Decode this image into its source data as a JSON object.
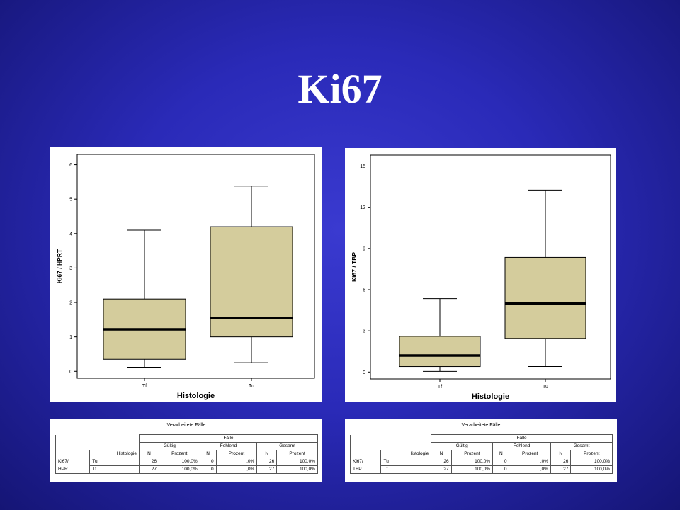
{
  "slide": {
    "title": "Ki67"
  },
  "chart_data": [
    {
      "type": "box",
      "xlabel": "Histologie",
      "ylabel": "Ki67 / HPRT",
      "categories": [
        "Tf",
        "Tu"
      ],
      "yticks": [
        "0",
        "1",
        "2",
        "3",
        "4",
        "5",
        "6"
      ],
      "ylim": [
        -0.2,
        6.3
      ],
      "boxes": [
        {
          "category": "Tf",
          "min": 0.12,
          "q1": 0.35,
          "median": 1.22,
          "q3": 2.1,
          "max": 4.1
        },
        {
          "category": "Tu",
          "min": 0.25,
          "q1": 1.0,
          "median": 1.55,
          "q3": 4.2,
          "max": 5.38
        }
      ],
      "box_color": "#d4cc9c"
    },
    {
      "type": "box",
      "xlabel": "Histologie",
      "ylabel": "Ki67 / TBP",
      "categories": [
        "Tf",
        "Tu"
      ],
      "yticks": [
        "0",
        "3",
        "6",
        "9",
        "12",
        "15"
      ],
      "ylim": [
        -0.5,
        15.8
      ],
      "boxes": [
        {
          "category": "Tf",
          "min": 0.05,
          "q1": 0.4,
          "median": 1.2,
          "q3": 2.6,
          "max": 5.35
        },
        {
          "category": "Tu",
          "min": 0.4,
          "q1": 2.45,
          "median": 5.0,
          "q3": 8.35,
          "max": 13.25
        }
      ],
      "box_color": "#d4cc9c"
    }
  ],
  "tables": [
    {
      "caption": "Verarbeitete Fälle",
      "group_header": "Fälle",
      "col_groups": [
        "Gültig",
        "Fehlend",
        "Gesamt"
      ],
      "sub_header": {
        "row_label": "Histologie",
        "n": "N",
        "pct": "Prozent"
      },
      "variable": [
        "Ki67/",
        "HPRT"
      ],
      "rows": [
        {
          "label": "Tu",
          "valid_n": "26",
          "valid_pct": "100,0%",
          "miss_n": "0",
          "miss_pct": ",0%",
          "tot_n": "26",
          "tot_pct": "100,0%"
        },
        {
          "label": "Tf",
          "valid_n": "27",
          "valid_pct": "100,0%",
          "miss_n": "0",
          "miss_pct": ",0%",
          "tot_n": "27",
          "tot_pct": "100,0%"
        }
      ]
    },
    {
      "caption": "Verarbeitete Fälle",
      "group_header": "Fälle",
      "col_groups": [
        "Gültig",
        "Fehlend",
        "Gesamt"
      ],
      "sub_header": {
        "row_label": "Histologie",
        "n": "N",
        "pct": "Prozent"
      },
      "variable": [
        "Ki67/",
        "TBP"
      ],
      "rows": [
        {
          "label": "Tu",
          "valid_n": "26",
          "valid_pct": "100,0%",
          "miss_n": "0",
          "miss_pct": ",0%",
          "tot_n": "26",
          "tot_pct": "100,0%"
        },
        {
          "label": "Tf",
          "valid_n": "27",
          "valid_pct": "100,0%",
          "miss_n": "0",
          "miss_pct": ",0%",
          "tot_n": "27",
          "tot_pct": "100,0%"
        }
      ]
    }
  ]
}
